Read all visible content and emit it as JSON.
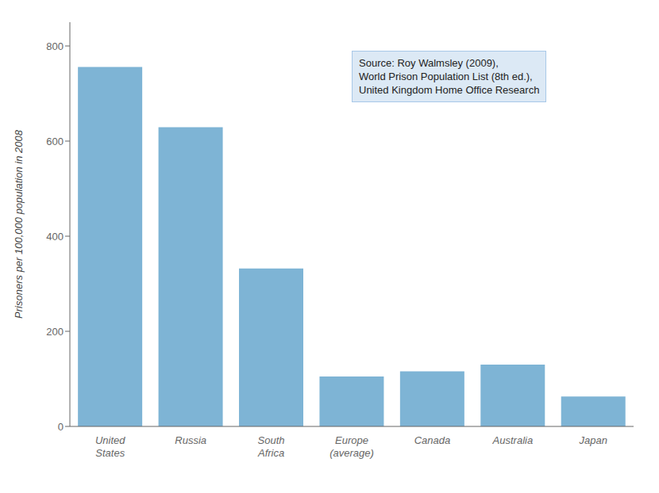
{
  "chart_data": {
    "type": "bar",
    "categories": [
      "United\nStates",
      "Russia",
      "South\nAfrica",
      "Europe\n(average)",
      "Canada",
      "Australia",
      "Japan"
    ],
    "values": [
      756,
      629,
      332,
      105,
      116,
      130,
      63
    ],
    "color": "#7eb4d5",
    "ylabel": "Prisoners per 100,000 population in 2008",
    "ylim": [
      0,
      850
    ],
    "yticks": [
      0,
      200,
      400,
      600,
      800
    ],
    "annotation": "Source: Roy Walmsley (2009),\nWorld Prison Population List (8th ed.),\nUnited Kingdom Home Office Research",
    "grid": false
  }
}
